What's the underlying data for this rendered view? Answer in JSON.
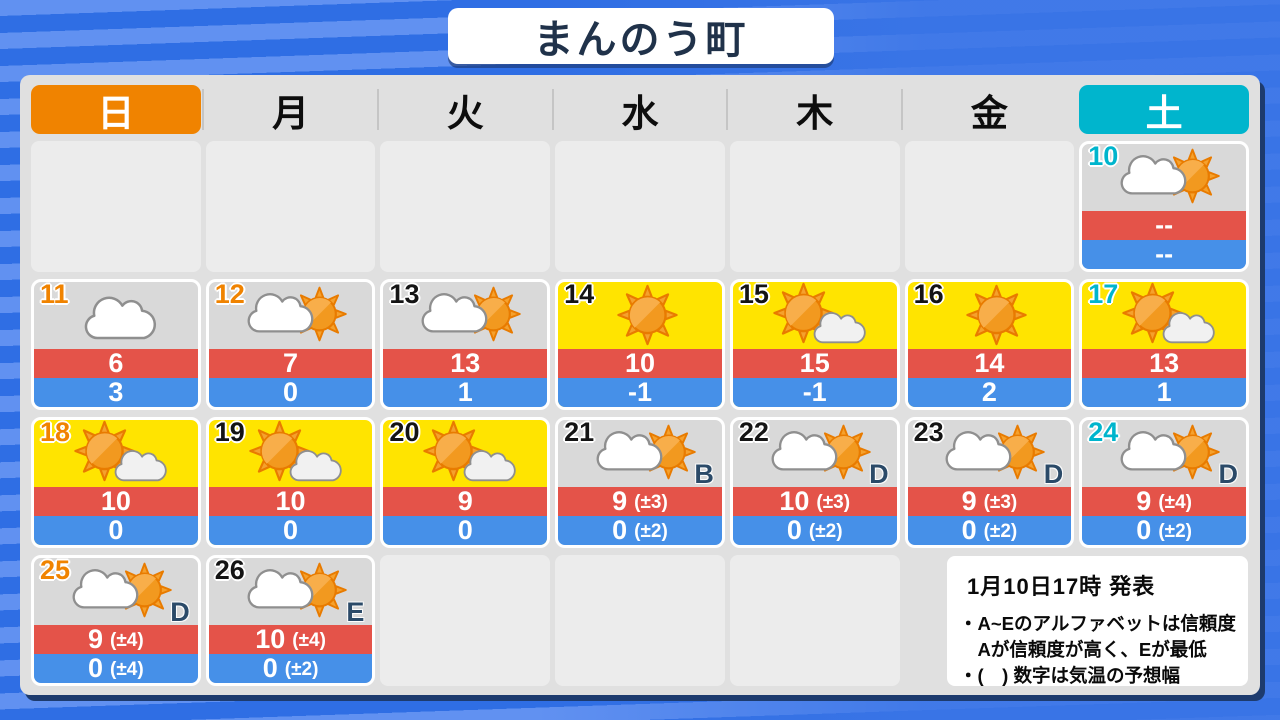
{
  "title": "まんのう町",
  "weekday_header": [
    {
      "label": "日",
      "style": "sunday",
      "name": "sun"
    },
    {
      "label": "月",
      "style": "weekday",
      "name": "mon"
    },
    {
      "label": "火",
      "style": "weekday",
      "name": "tue"
    },
    {
      "label": "水",
      "style": "weekday",
      "name": "wed"
    },
    {
      "label": "木",
      "style": "weekday",
      "name": "thu"
    },
    {
      "label": "金",
      "style": "weekday",
      "name": "fri"
    },
    {
      "label": "土",
      "style": "saturday",
      "name": "sat"
    }
  ],
  "calendar": {
    "days": [
      {
        "date": "10",
        "row": 1,
        "col": 7,
        "date_color": "saturday",
        "bg": "gray",
        "icon": "cloud-sun",
        "high": "--",
        "low": "--"
      },
      {
        "date": "11",
        "row": 2,
        "col": 1,
        "date_color": "sunday",
        "bg": "gray",
        "icon": "cloud",
        "high": "6",
        "low": "3"
      },
      {
        "date": "12",
        "row": 2,
        "col": 2,
        "date_color": "sunday",
        "bg": "gray",
        "icon": "cloud-sun",
        "high": "7",
        "low": "0"
      },
      {
        "date": "13",
        "row": 2,
        "col": 3,
        "date_color": "weekday",
        "bg": "gray",
        "icon": "cloud-sun",
        "high": "13",
        "low": "1"
      },
      {
        "date": "14",
        "row": 2,
        "col": 4,
        "date_color": "weekday",
        "bg": "yellow",
        "icon": "sun",
        "high": "10",
        "low": "-1"
      },
      {
        "date": "15",
        "row": 2,
        "col": 5,
        "date_color": "weekday",
        "bg": "yellow",
        "icon": "sun-cloud",
        "high": "15",
        "low": "-1"
      },
      {
        "date": "16",
        "row": 2,
        "col": 6,
        "date_color": "weekday",
        "bg": "yellow",
        "icon": "sun",
        "high": "14",
        "low": "2"
      },
      {
        "date": "17",
        "row": 2,
        "col": 7,
        "date_color": "saturday",
        "bg": "yellow",
        "icon": "sun-cloud",
        "high": "13",
        "low": "1"
      },
      {
        "date": "18",
        "row": 3,
        "col": 1,
        "date_color": "sunday",
        "bg": "yellow",
        "icon": "sun-cloud",
        "high": "10",
        "low": "0"
      },
      {
        "date": "19",
        "row": 3,
        "col": 2,
        "date_color": "weekday",
        "bg": "yellow",
        "icon": "sun-cloud",
        "high": "10",
        "low": "0"
      },
      {
        "date": "20",
        "row": 3,
        "col": 3,
        "date_color": "weekday",
        "bg": "yellow",
        "icon": "sun-cloud",
        "high": "9",
        "low": "0"
      },
      {
        "date": "21",
        "row": 3,
        "col": 4,
        "date_color": "weekday",
        "bg": "gray",
        "icon": "cloud-sun",
        "reliability": "B",
        "high": "9",
        "high_range": "(±3)",
        "low": "0",
        "low_range": "(±2)"
      },
      {
        "date": "22",
        "row": 3,
        "col": 5,
        "date_color": "weekday",
        "bg": "gray",
        "icon": "cloud-sun",
        "reliability": "D",
        "high": "10",
        "high_range": "(±3)",
        "low": "0",
        "low_range": "(±2)"
      },
      {
        "date": "23",
        "row": 3,
        "col": 6,
        "date_color": "weekday",
        "bg": "gray",
        "icon": "cloud-sun",
        "reliability": "D",
        "high": "9",
        "high_range": "(±3)",
        "low": "0",
        "low_range": "(±2)"
      },
      {
        "date": "24",
        "row": 3,
        "col": 7,
        "date_color": "saturday",
        "bg": "gray",
        "icon": "cloud-sun",
        "reliability": "D",
        "high": "9",
        "high_range": "(±4)",
        "low": "0",
        "low_range": "(±2)"
      },
      {
        "date": "25",
        "row": 4,
        "col": 1,
        "date_color": "sunday",
        "bg": "gray",
        "icon": "cloud-sun",
        "reliability": "D",
        "high": "9",
        "high_range": "(±4)",
        "low": "0",
        "low_range": "(±4)"
      },
      {
        "date": "26",
        "row": 4,
        "col": 2,
        "date_color": "weekday",
        "bg": "gray",
        "icon": "cloud-sun",
        "reliability": "E",
        "high": "10",
        "high_range": "(±4)",
        "low": "0",
        "low_range": "(±2)"
      }
    ],
    "empty_cells": [
      {
        "row": 1,
        "col": 1
      },
      {
        "row": 1,
        "col": 2
      },
      {
        "row": 1,
        "col": 3
      },
      {
        "row": 1,
        "col": 4
      },
      {
        "row": 1,
        "col": 5
      },
      {
        "row": 1,
        "col": 6
      },
      {
        "row": 4,
        "col": 3
      },
      {
        "row": 4,
        "col": 4
      },
      {
        "row": 4,
        "col": 5
      }
    ]
  },
  "notice": {
    "heading": "1月10日17時 発表",
    "lines": [
      "・A~Eのアルファベットは信頼度",
      "　Aが信頼度が高く、Eが最低",
      "・(　) 数字は気温の予想幅"
    ]
  },
  "icon_names": {
    "sun": "sun-icon",
    "cloud": "cloud-icon",
    "cloud-sun": "cloud-and-sun-icon",
    "sun-cloud": "sun-and-cloud-icon"
  },
  "colors": {
    "sunday_accent": "#f08300",
    "saturday_accent": "#00b5cd",
    "sunny_cell": "#ffe400",
    "cloudy_cell": "#d9d9d9",
    "high_temp_bar": "#e45349",
    "low_temp_bar": "#4690e8",
    "reliability_letter": "#2b4a68",
    "background_blue": "#2f6ee4"
  }
}
